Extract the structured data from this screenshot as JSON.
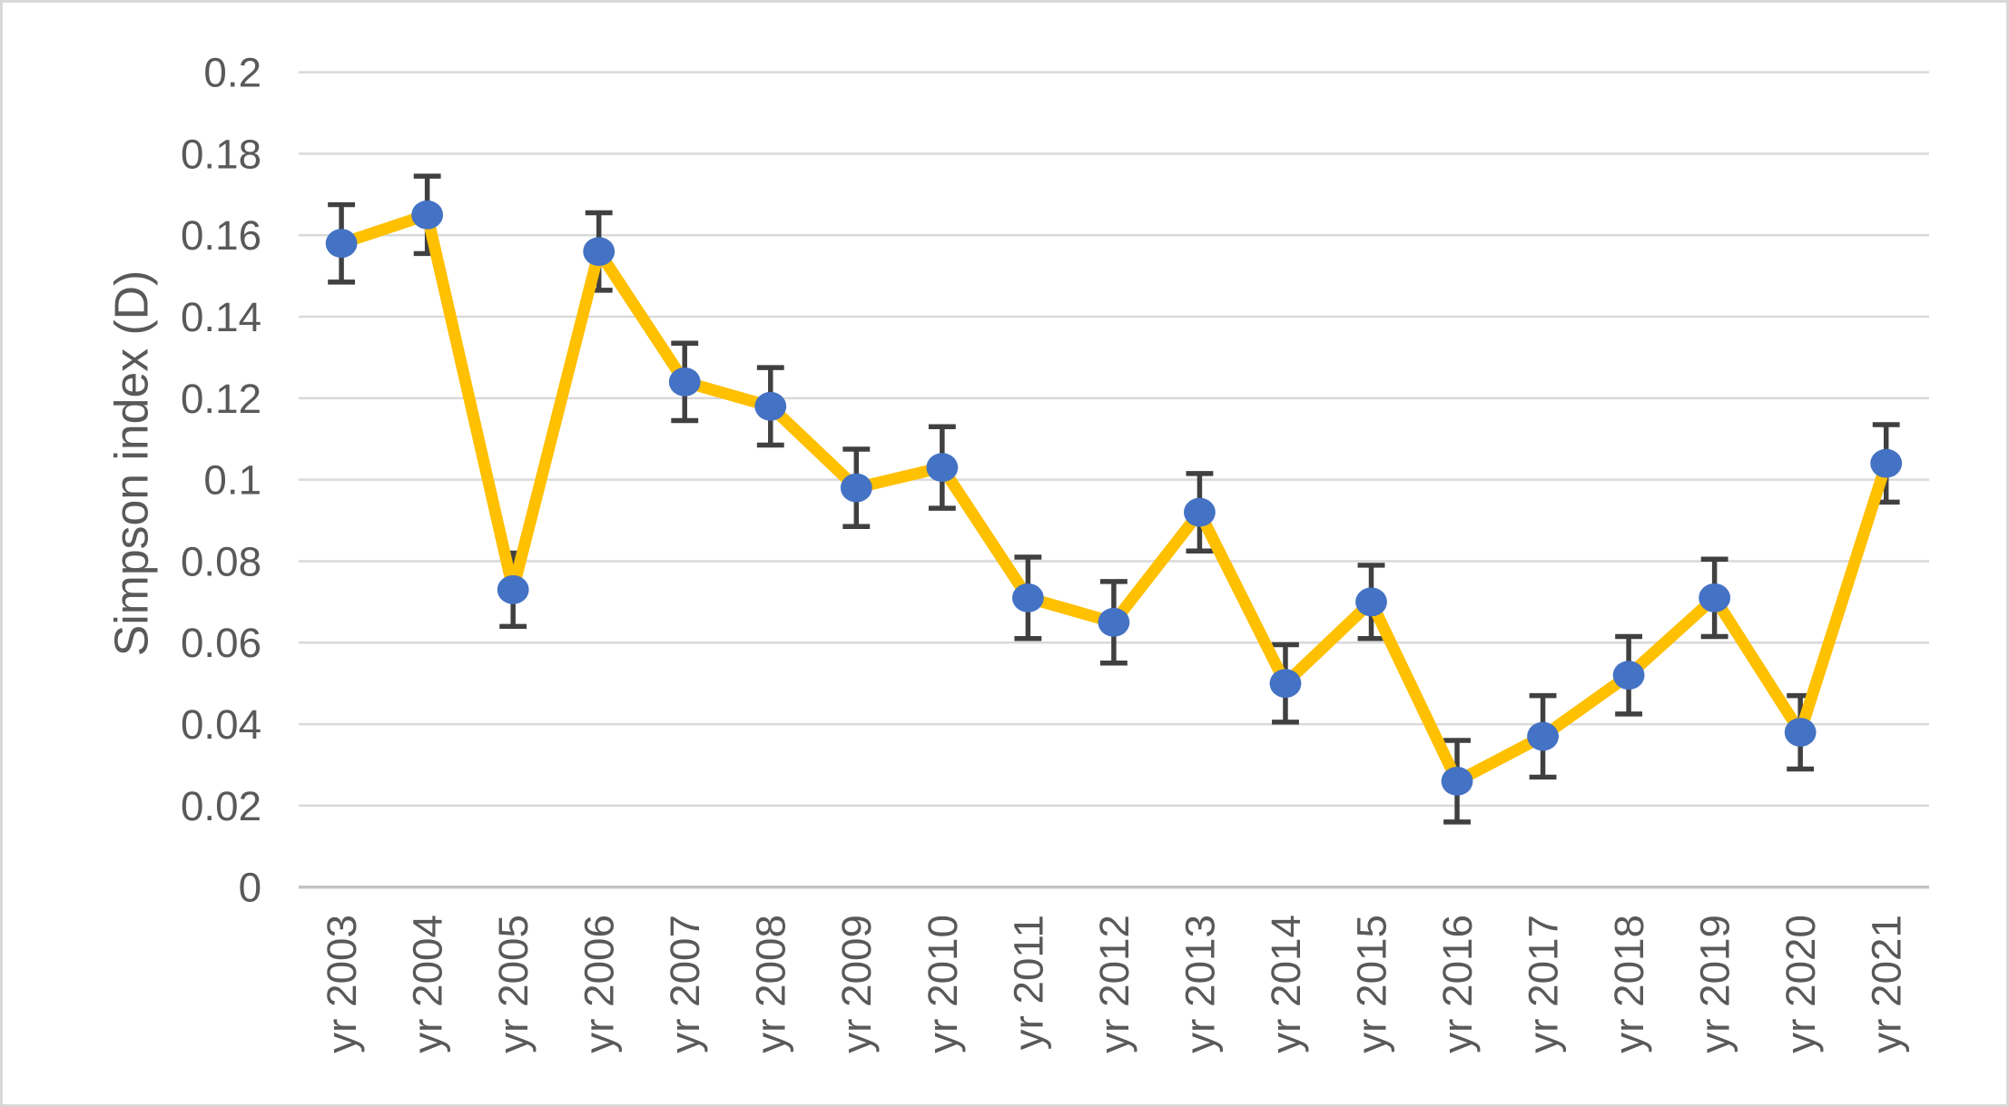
{
  "chart_data": {
    "type": "line",
    "title": "",
    "xlabel": "",
    "ylabel": "Simpson index (D)",
    "categories": [
      "yr 2003",
      "yr 2004",
      "yr 2005",
      "yr 2006",
      "yr 2007",
      "yr 2008",
      "yr 2009",
      "yr 2010",
      "yr 2011",
      "yr 2012",
      "yr 2013",
      "yr 2014",
      "yr 2015",
      "yr 2016",
      "yr 2017",
      "yr 2018",
      "yr 2019",
      "yr 2020",
      "yr 2021"
    ],
    "series": [
      {
        "name": "Simpson index (D)",
        "values": [
          0.158,
          0.165,
          0.073,
          0.156,
          0.124,
          0.118,
          0.098,
          0.103,
          0.071,
          0.065,
          0.092,
          0.05,
          0.07,
          0.026,
          0.037,
          0.052,
          0.071,
          0.038,
          0.104
        ],
        "error_bars": [
          0.0095,
          0.0095,
          0.009,
          0.0095,
          0.0095,
          0.0095,
          0.0095,
          0.01,
          0.01,
          0.01,
          0.0095,
          0.0095,
          0.009,
          0.01,
          0.01,
          0.0095,
          0.0095,
          0.009,
          0.0095
        ]
      }
    ],
    "ylim": [
      0,
      0.2
    ],
    "ytick_step": 0.02,
    "ytick_labels": [
      "0",
      "0.02",
      "0.04",
      "0.06",
      "0.08",
      "0.1",
      "0.12",
      "0.14",
      "0.16",
      "0.18",
      "0.2"
    ],
    "grid": true,
    "legend": false,
    "marker": "circle",
    "colors": {
      "line": "#FFC000",
      "marker": "#4472C4",
      "error_bar": "#404040",
      "gridline": "#D9D9D9",
      "axis_line": "#C3C3C3",
      "text": "#595959"
    }
  }
}
